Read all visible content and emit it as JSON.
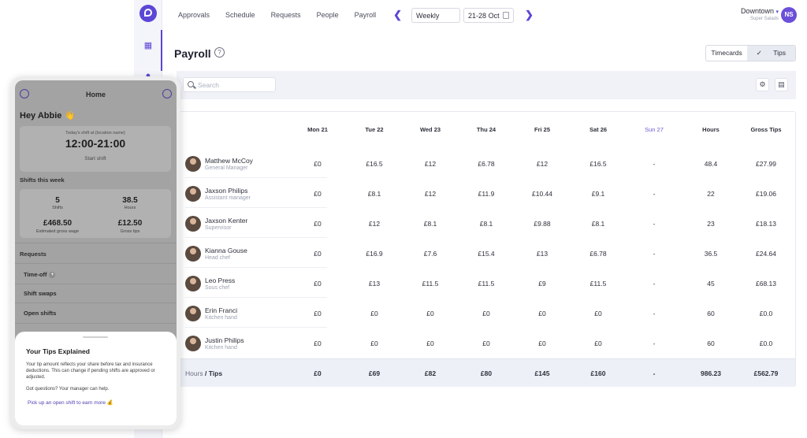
{
  "nav": {
    "links": [
      "Approvals",
      "Schedule",
      "Requests",
      "People",
      "Payroll"
    ],
    "period": "Weekly",
    "date_range": "21-28 Oct",
    "location": "Downtown",
    "role": "Super Salads",
    "avatar_initials": "NS"
  },
  "page": {
    "title": "Payroll",
    "toggle_timecards": "Timecards",
    "toggle_tips": "Tips",
    "search_placeholder": "Search"
  },
  "table": {
    "headers": [
      "Mon 21",
      "Tue 22",
      "Wed 23",
      "Thu 24",
      "Fri 25",
      "Sat 26",
      "Sun 27",
      "Hours",
      "Gross Tips"
    ],
    "rows": [
      {
        "name": "Matthew McCoy",
        "role": "General Manager",
        "cells": [
          "£0",
          "£16.5",
          "£12",
          "£6.78",
          "£12",
          "£16.5",
          "-",
          "48.4",
          "£27.99"
        ]
      },
      {
        "name": "Jaxson Philips",
        "role": "Assistant manager",
        "cells": [
          "£0",
          "£8.1",
          "£12",
          "£11.9",
          "£10.44",
          "£9.1",
          "-",
          "22",
          "£19.06"
        ]
      },
      {
        "name": "Jaxson Kenter",
        "role": "Supervisor",
        "cells": [
          "£0",
          "£12",
          "£8.1",
          "£8.1",
          "£9.88",
          "£8.1",
          "-",
          "23",
          "£18.13"
        ]
      },
      {
        "name": "Kianna Gouse",
        "role": "Head chef",
        "cells": [
          "£0",
          "£16.9",
          "£7.6",
          "£15.4",
          "£13",
          "£6.78",
          "-",
          "36.5",
          "£24.64"
        ]
      },
      {
        "name": "Leo Press",
        "role": "Sous chef",
        "cells": [
          "£0",
          "£13",
          "£11.5",
          "£11.5",
          "£9",
          "£11.5",
          "-",
          "45",
          "£68.13"
        ]
      },
      {
        "name": "Erin Franci",
        "role": "Kitchen hand",
        "cells": [
          "£0",
          "£0",
          "£0",
          "£0",
          "£0",
          "£0",
          "-",
          "60",
          "£0.0"
        ]
      },
      {
        "name": "Justin Philips",
        "role": "Kitchen hand",
        "cells": [
          "£0",
          "£0",
          "£0",
          "£0",
          "£0",
          "£0",
          "-",
          "60",
          "£0.0"
        ]
      }
    ],
    "totals_label_a": "Hours",
    "totals_label_b": " / Tips",
    "totals": [
      "£0",
      "£69",
      "£82",
      "£80",
      "£145",
      "£160",
      "-",
      "986.23",
      "£562.79"
    ]
  },
  "phone": {
    "title": "Home",
    "greeting": "Hey Abbie 👋",
    "shift_caption": "Today's shift at {location name}",
    "shift_time": "12:00-21:00",
    "start_shift": "Start shift",
    "week_section": "Shifts this week",
    "shifts_value": "5",
    "shifts_label": "Shifts",
    "hours_value": "38.5",
    "hours_label": "Hours",
    "wage_value": "£468.50",
    "wage_label": "Estimated gross wage",
    "tips_value": "£12.50",
    "tips_label": "Gross tips",
    "requests_section": "Requests",
    "req_timeoff": "Time-off",
    "req_swaps": "Shift swaps",
    "req_open": "Open shifts",
    "sheet_title": "Your Tips Explained",
    "sheet_body": "Your tip amount reflects your share before tax and insurance deductions. This can change if pending shifts are approved or adjusted.",
    "sheet_question": "Got questions? Your manager can help.",
    "sheet_link": "Pick up an open shift to earn more 💰"
  }
}
